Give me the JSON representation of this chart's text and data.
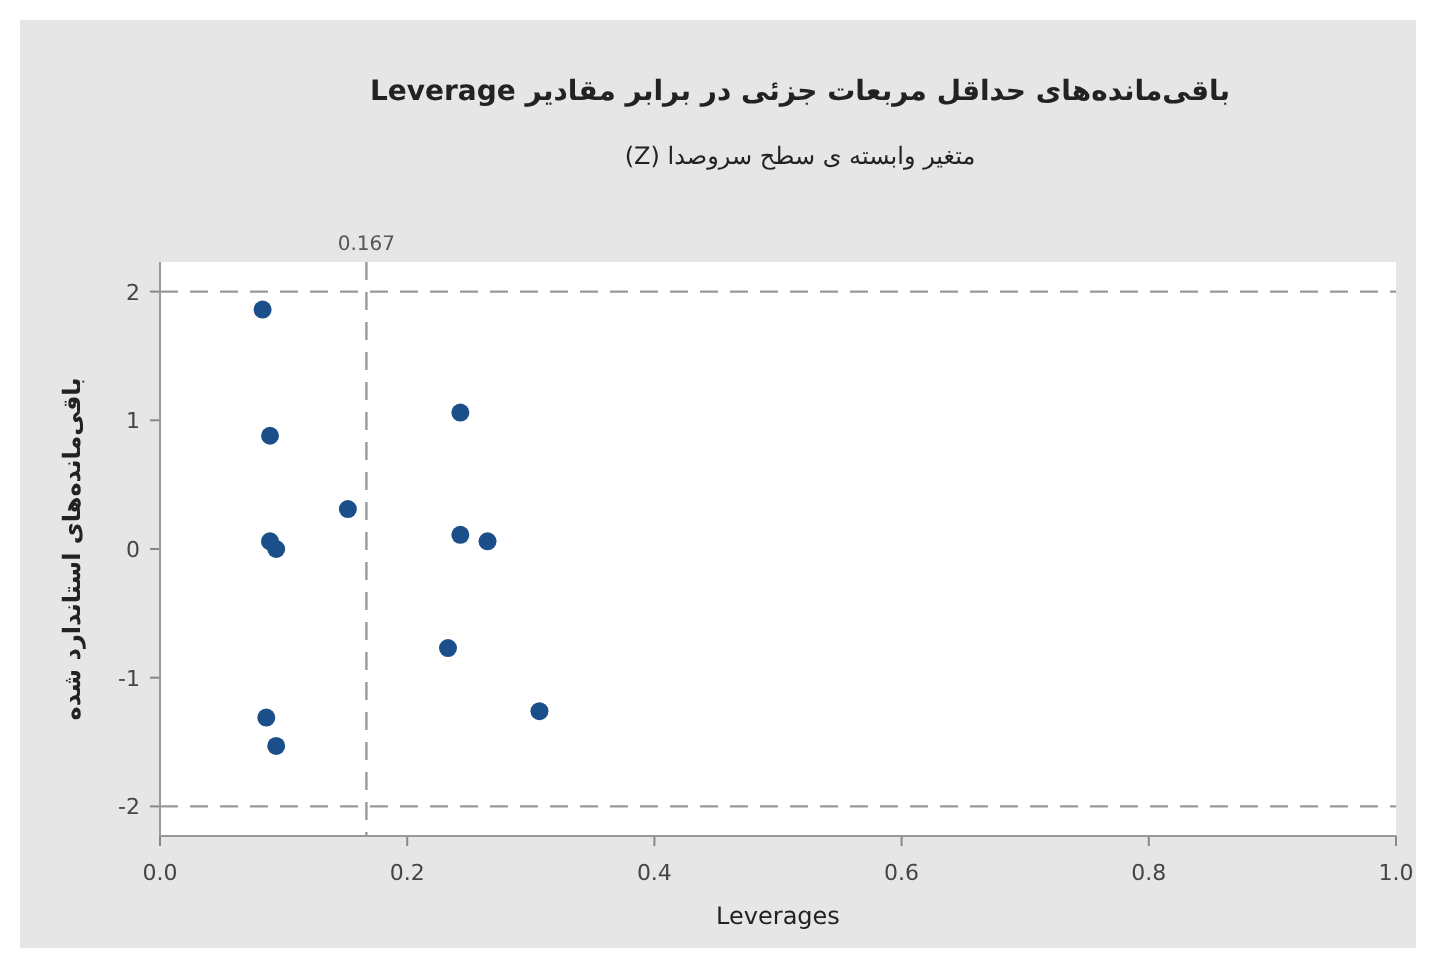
{
  "chart_data": {
    "type": "scatter",
    "title": "باقی‌مانده‌های حداقل مربعات جزئی در برابر مقادیر **Leverage**",
    "subtitle": "متغیر وابسته ی سطح سروصدا (Z)",
    "xlabel": "Leverages",
    "ylabel": "باقی‌مانده‌های استاندارد شده",
    "series": [
      {
        "color": "#1b4f8a",
        "x": [
          0.083,
          0.089,
          0.089,
          0.094,
          0.152,
          0.243,
          0.243,
          0.265,
          0.233,
          0.307,
          0.086,
          0.094
        ],
        "values": [
          1.86,
          0.88,
          0.06,
          0.0,
          0.31,
          1.06,
          0.11,
          0.06,
          -0.77,
          -1.26,
          -1.31,
          -1.53
        ]
      }
    ],
    "xlim": [
      0,
      1
    ],
    "ylim": [
      -2.23,
      2.23
    ],
    "xticks": [
      {
        "value": 0,
        "label": "0.0"
      },
      {
        "value": 0.2,
        "label": "0.2"
      },
      {
        "value": 0.4,
        "label": "0.4"
      },
      {
        "value": 0.6,
        "label": "0.6"
      },
      {
        "value": 0.8,
        "label": "0.8"
      },
      {
        "value": 1,
        "label": "1.0"
      }
    ],
    "yticks": [
      -2,
      -1,
      0,
      1,
      2
    ],
    "ref_lines": [
      {
        "axis": "y",
        "value": 2,
        "color": "#999999",
        "line_style": "dashed"
      },
      {
        "axis": "y",
        "value": -2,
        "color": "#999999",
        "line_style": "dashed"
      },
      {
        "axis": "x",
        "value": 0.167,
        "label": "0.167",
        "color": "#999999",
        "line_style": "dashed"
      }
    ],
    "marker": "circle"
  }
}
